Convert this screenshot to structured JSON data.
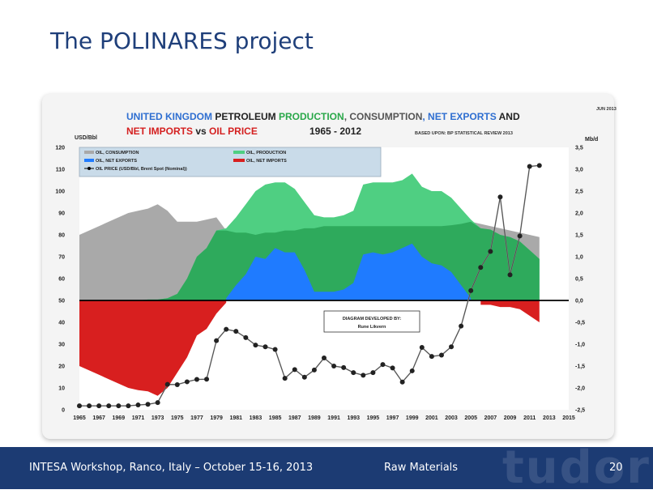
{
  "slide": {
    "title": "The POLINARES project",
    "footer_left": "INTESA Workshop, Ranco, Italy – October 15-16, 2013",
    "footer_mid": "Raw Materials",
    "page_number": "20",
    "logo": "tudor"
  },
  "chart_data": {
    "type": "area",
    "title_line1": [
      {
        "text": "UNITED KINGDOM ",
        "color": "#2f6fd1"
      },
      {
        "text": "PETROLEUM ",
        "color": "#222222"
      },
      {
        "text": "PRODUCTION",
        "color": "#2aa84a"
      },
      {
        "text": ", CONSUMPTION",
        "color": "#555555"
      },
      {
        "text": ", NET EXPORTS",
        "color": "#2f6fd1"
      },
      {
        "text": " AND",
        "color": "#222222"
      }
    ],
    "title_line2": [
      {
        "text": "NET IMPORTS",
        "color": "#d42020"
      },
      {
        "text": " vs ",
        "color": "#222222"
      },
      {
        "text": "OIL PRICE",
        "color": "#d42020"
      }
    ],
    "years_label": "1965 - 2012",
    "source": "BASED UPON: BP STATISTICAL REVIEW 2013",
    "date_label": "JUN 2013",
    "left_axis_unit": "USD/Bbl",
    "right_axis_unit": "Mb/d",
    "left_ylim": [
      0,
      120
    ],
    "left_ticks": [
      0,
      10,
      20,
      30,
      40,
      50,
      60,
      70,
      80,
      90,
      100,
      110,
      120
    ],
    "right_ylim": [
      -2.5,
      3.5
    ],
    "right_ticks": [
      "-2,5",
      "-2,0",
      "-1,5",
      "-1,0",
      "-0,5",
      "0,0",
      "0,5",
      "1,0",
      "1,5",
      "2,0",
      "2,5",
      "3,0",
      "3,5"
    ],
    "xlim": [
      1965,
      2015
    ],
    "x_ticks": [
      1965,
      1967,
      1969,
      1971,
      1973,
      1975,
      1977,
      1979,
      1981,
      1983,
      1985,
      1987,
      1989,
      1991,
      1993,
      1995,
      1997,
      1999,
      2001,
      2003,
      2005,
      2007,
      2009,
      2011,
      2013,
      2015
    ],
    "legend": {
      "consumption": "OIL, CONSUMPTION",
      "production": "OIL, PRODUCTION",
      "net_exports": "OIL, NET EXPORTS",
      "net_imports": "OIL, NET IMPORTS",
      "price": "OIL PRICE (USD/Bbl, Brent Spot (Nominal))"
    },
    "annotation_line1": "DIAGRAM DEVELOPED BY:",
    "annotation_line2": "Rune Likvern",
    "colors": {
      "consumption": "#a9a9a9",
      "production": "#4fcf82",
      "production_overlap": "#2aa558",
      "net_exports": "#1f7bff",
      "net_imports": "#d81f1f",
      "price": "#222222"
    },
    "years": [
      1965,
      1966,
      1967,
      1968,
      1969,
      1970,
      1971,
      1972,
      1973,
      1974,
      1975,
      1976,
      1977,
      1978,
      1979,
      1980,
      1981,
      1982,
      1983,
      1984,
      1985,
      1986,
      1987,
      1988,
      1989,
      1990,
      1991,
      1992,
      1993,
      1994,
      1995,
      1996,
      1997,
      1998,
      1999,
      2000,
      2001,
      2002,
      2003,
      2004,
      2005,
      2006,
      2007,
      2008,
      2009,
      2010,
      2011,
      2012
    ],
    "series": [
      {
        "name": "OIL, CONSUMPTION",
        "axis": "right",
        "values": [
          1.5,
          1.6,
          1.7,
          1.8,
          1.9,
          2.0,
          2.05,
          2.1,
          2.2,
          2.05,
          1.8,
          1.8,
          1.8,
          1.85,
          1.9,
          1.6,
          1.55,
          1.55,
          1.5,
          1.55,
          1.55,
          1.6,
          1.6,
          1.65,
          1.65,
          1.7,
          1.7,
          1.7,
          1.7,
          1.7,
          1.7,
          1.7,
          1.7,
          1.7,
          1.7,
          1.7,
          1.7,
          1.7,
          1.72,
          1.75,
          1.8,
          1.75,
          1.7,
          1.65,
          1.6,
          1.55,
          1.5,
          1.45
        ]
      },
      {
        "name": "OIL, PRODUCTION",
        "axis": "right",
        "values": [
          0.0,
          0.0,
          0.0,
          0.0,
          0.0,
          0.0,
          0.0,
          0.02,
          0.02,
          0.05,
          0.15,
          0.5,
          1.0,
          1.2,
          1.6,
          1.65,
          1.9,
          2.2,
          2.5,
          2.65,
          2.7,
          2.7,
          2.55,
          2.25,
          1.95,
          1.9,
          1.9,
          1.95,
          2.05,
          2.65,
          2.7,
          2.7,
          2.7,
          2.75,
          2.9,
          2.6,
          2.5,
          2.5,
          2.35,
          2.1,
          1.85,
          1.65,
          1.62,
          1.5,
          1.45,
          1.35,
          1.15,
          0.95
        ]
      },
      {
        "name": "OIL, NET EXPORTS",
        "axis": "right",
        "values": [
          null,
          null,
          null,
          null,
          null,
          null,
          null,
          null,
          null,
          null,
          null,
          null,
          null,
          null,
          null,
          0.05,
          0.35,
          0.6,
          1.0,
          0.95,
          1.2,
          1.1,
          1.1,
          0.7,
          0.2,
          0.2,
          0.2,
          0.25,
          0.4,
          1.05,
          1.1,
          1.05,
          1.1,
          1.2,
          1.3,
          1.0,
          0.85,
          0.8,
          0.65,
          0.35,
          0.05,
          null,
          null,
          null,
          null,
          null,
          null,
          null
        ]
      },
      {
        "name": "OIL, NET IMPORTS",
        "axis": "right",
        "values": [
          -1.5,
          -1.6,
          -1.7,
          -1.8,
          -1.9,
          -2.0,
          -2.05,
          -2.08,
          -2.18,
          -2.0,
          -1.65,
          -1.3,
          -0.8,
          -0.65,
          -0.3,
          -0.05,
          null,
          null,
          null,
          null,
          null,
          null,
          null,
          null,
          null,
          null,
          null,
          null,
          null,
          null,
          null,
          null,
          null,
          null,
          null,
          null,
          null,
          null,
          null,
          null,
          null,
          -0.1,
          -0.1,
          -0.15,
          -0.15,
          -0.2,
          -0.35,
          -0.5
        ]
      },
      {
        "name": "OIL PRICE (USD/Bbl, Brent Spot (Nominal))",
        "axis": "left",
        "values": [
          1.8,
          1.8,
          1.8,
          1.8,
          1.8,
          1.8,
          2.2,
          2.5,
          3.3,
          11.6,
          11.5,
          12.8,
          13.9,
          14.0,
          31.6,
          36.8,
          35.9,
          33.0,
          29.6,
          28.8,
          27.6,
          14.4,
          18.4,
          14.9,
          18.2,
          23.7,
          20.0,
          19.3,
          17.0,
          15.8,
          17.0,
          20.7,
          19.1,
          12.7,
          17.8,
          28.5,
          24.4,
          25.0,
          28.8,
          38.3,
          54.5,
          65.1,
          72.4,
          97.3,
          61.7,
          79.5,
          111.3,
          111.7
        ]
      }
    ]
  }
}
